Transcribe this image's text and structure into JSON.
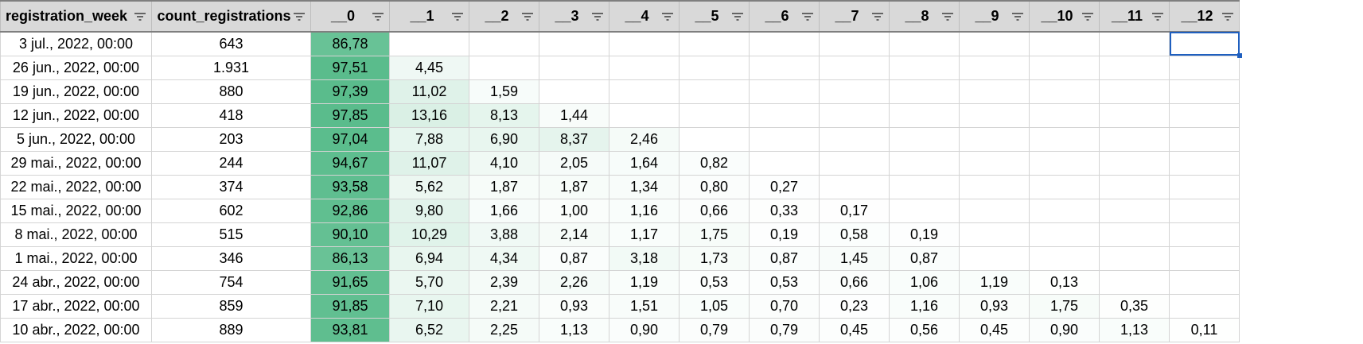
{
  "columns": [
    "registration_week",
    "count_registrations",
    "__0",
    "__1",
    "__2",
    "__3",
    "__4",
    "__5",
    "__6",
    "__7",
    "__8",
    "__9",
    "__10",
    "__11",
    "__12"
  ],
  "rows": [
    [
      "3 jul., 2022, 00:00",
      "643",
      "86,78",
      "",
      "",
      "",
      "",
      "",
      "",
      "",
      "",
      "",
      "",
      "",
      ""
    ],
    [
      "26 jun., 2022, 00:00",
      "1.931",
      "97,51",
      "4,45",
      "",
      "",
      "",
      "",
      "",
      "",
      "",
      "",
      "",
      "",
      ""
    ],
    [
      "19 jun., 2022, 00:00",
      "880",
      "97,39",
      "11,02",
      "1,59",
      "",
      "",
      "",
      "",
      "",
      "",
      "",
      "",
      "",
      ""
    ],
    [
      "12 jun., 2022, 00:00",
      "418",
      "97,85",
      "13,16",
      "8,13",
      "1,44",
      "",
      "",
      "",
      "",
      "",
      "",
      "",
      "",
      ""
    ],
    [
      "5 jun., 2022, 00:00",
      "203",
      "97,04",
      "7,88",
      "6,90",
      "8,37",
      "2,46",
      "",
      "",
      "",
      "",
      "",
      "",
      "",
      ""
    ],
    [
      "29 mai., 2022, 00:00",
      "244",
      "94,67",
      "11,07",
      "4,10",
      "2,05",
      "1,64",
      "0,82",
      "",
      "",
      "",
      "",
      "",
      "",
      ""
    ],
    [
      "22 mai., 2022, 00:00",
      "374",
      "93,58",
      "5,62",
      "1,87",
      "1,87",
      "1,34",
      "0,80",
      "0,27",
      "",
      "",
      "",
      "",
      "",
      ""
    ],
    [
      "15 mai., 2022, 00:00",
      "602",
      "92,86",
      "9,80",
      "1,66",
      "1,00",
      "1,16",
      "0,66",
      "0,33",
      "0,17",
      "",
      "",
      "",
      "",
      ""
    ],
    [
      "8 mai., 2022, 00:00",
      "515",
      "90,10",
      "10,29",
      "3,88",
      "2,14",
      "1,17",
      "1,75",
      "0,19",
      "0,58",
      "0,19",
      "",
      "",
      "",
      ""
    ],
    [
      "1 mai., 2022, 00:00",
      "346",
      "86,13",
      "6,94",
      "4,34",
      "0,87",
      "3,18",
      "1,73",
      "0,87",
      "1,45",
      "0,87",
      "",
      "",
      "",
      ""
    ],
    [
      "24 abr., 2022, 00:00",
      "754",
      "91,65",
      "5,70",
      "2,39",
      "2,26",
      "1,19",
      "0,53",
      "0,53",
      "0,66",
      "1,06",
      "1,19",
      "0,13",
      "",
      ""
    ],
    [
      "17 abr., 2022, 00:00",
      "859",
      "91,85",
      "7,10",
      "2,21",
      "0,93",
      "1,51",
      "1,05",
      "0,70",
      "0,23",
      "1,16",
      "0,93",
      "1,75",
      "0,35",
      ""
    ],
    [
      "10 abr., 2022, 00:00",
      "889",
      "93,81",
      "6,52",
      "2,25",
      "1,13",
      "0,90",
      "0,79",
      "0,79",
      "0,45",
      "0,56",
      "0,45",
      "0,90",
      "1,13",
      "0,11"
    ]
  ],
  "heatmap": {
    "low_color": "#ffffff",
    "high_color": "#57bb8a"
  },
  "header_icon": "filter-icon",
  "selected_cell": {
    "row": 0,
    "column": "__12"
  },
  "colors": {
    "header_bg": "#d9d9d9",
    "selection": "#1f5fbf"
  }
}
